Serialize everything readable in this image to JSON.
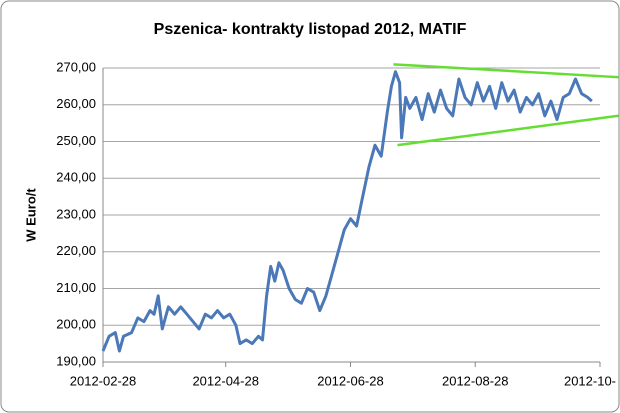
{
  "chart_data": {
    "type": "line",
    "title": "Pszenica- kontrakty listopad 2012, MATIF",
    "y_label": "W Euro/t",
    "x": [
      "2012-02-28",
      "2012-03-02",
      "2012-03-05",
      "2012-03-07",
      "2012-03-09",
      "2012-03-13",
      "2012-03-16",
      "2012-03-19",
      "2012-03-22",
      "2012-03-24",
      "2012-03-26",
      "2012-03-28",
      "2012-03-31",
      "2012-04-03",
      "2012-04-06",
      "2012-04-09",
      "2012-04-12",
      "2012-04-15",
      "2012-04-18",
      "2012-04-21",
      "2012-04-24",
      "2012-04-27",
      "2012-04-30",
      "2012-05-03",
      "2012-05-05",
      "2012-05-08",
      "2012-05-11",
      "2012-05-14",
      "2012-05-16",
      "2012-05-18",
      "2012-05-20",
      "2012-05-22",
      "2012-05-24",
      "2012-05-26",
      "2012-05-29",
      "2012-06-01",
      "2012-06-04",
      "2012-06-07",
      "2012-06-10",
      "2012-06-13",
      "2012-06-16",
      "2012-06-19",
      "2012-06-22",
      "2012-06-25",
      "2012-06-28",
      "2012-07-01",
      "2012-07-04",
      "2012-07-07",
      "2012-07-10",
      "2012-07-13",
      "2012-07-16",
      "2012-07-18",
      "2012-07-20",
      "2012-07-22",
      "2012-07-23",
      "2012-07-25",
      "2012-07-27",
      "2012-07-30",
      "2012-08-02",
      "2012-08-05",
      "2012-08-08",
      "2012-08-11",
      "2012-08-14",
      "2012-08-17",
      "2012-08-20",
      "2012-08-23",
      "2012-08-26",
      "2012-08-29",
      "2012-09-01",
      "2012-09-04",
      "2012-09-07",
      "2012-09-10",
      "2012-09-13",
      "2012-09-16",
      "2012-09-19",
      "2012-09-22",
      "2012-09-25",
      "2012-09-28",
      "2012-10-01",
      "2012-10-04",
      "2012-10-07",
      "2012-10-10",
      "2012-10-13",
      "2012-10-16",
      "2012-10-19",
      "2012-10-22",
      "2012-10-24"
    ],
    "series": [
      {
        "color": "#4a78b8",
        "values": [
          193,
          197,
          198,
          193,
          197,
          198,
          202,
          201,
          204,
          203,
          208,
          199,
          205,
          203,
          205,
          203,
          201,
          199,
          203,
          202,
          204,
          202,
          203,
          200,
          195,
          196,
          195,
          197,
          196,
          208,
          216,
          212,
          217,
          215,
          210,
          207,
          206,
          210,
          209,
          204,
          208,
          214,
          220,
          226,
          229,
          227,
          235,
          243,
          249,
          246,
          258,
          265,
          269,
          266,
          251,
          262,
          259,
          262,
          256,
          263,
          258,
          264,
          259,
          257,
          267,
          262,
          260,
          266,
          261,
          265,
          259,
          266,
          261,
          264,
          258,
          262,
          260,
          263,
          257,
          261,
          256,
          262,
          263,
          267,
          263,
          262,
          261
        ]
      }
    ],
    "trend_lines": [
      {
        "color": "#66dd33",
        "x": [
          "2012-07-19",
          "2012-11-06"
        ],
        "y": [
          271,
          267.5
        ]
      },
      {
        "color": "#66dd33",
        "x": [
          "2012-07-21",
          "2012-11-06"
        ],
        "y": [
          249,
          257
        ]
      }
    ],
    "xlim": [
      "2012-02-28",
      "2012-10-28"
    ],
    "xticks": [
      "2012-02-28",
      "2012-04-28",
      "2012-06-28",
      "2012-08-28",
      {
        "value": "2012-10-28",
        "label": "2012-10-"
      }
    ],
    "ylim": [
      190,
      270
    ],
    "yticks": [
      {
        "value": 190,
        "label": "190,00"
      },
      {
        "value": 200,
        "label": "200,00"
      },
      {
        "value": 210,
        "label": "210,00"
      },
      {
        "value": 220,
        "label": "220,00"
      },
      {
        "value": 230,
        "label": "230,00"
      },
      {
        "value": 240,
        "label": "240,00"
      },
      {
        "value": 250,
        "label": "250,00"
      },
      {
        "value": 260,
        "label": "260,00"
      },
      {
        "value": 270,
        "label": "270,00"
      }
    ],
    "grid": true
  }
}
